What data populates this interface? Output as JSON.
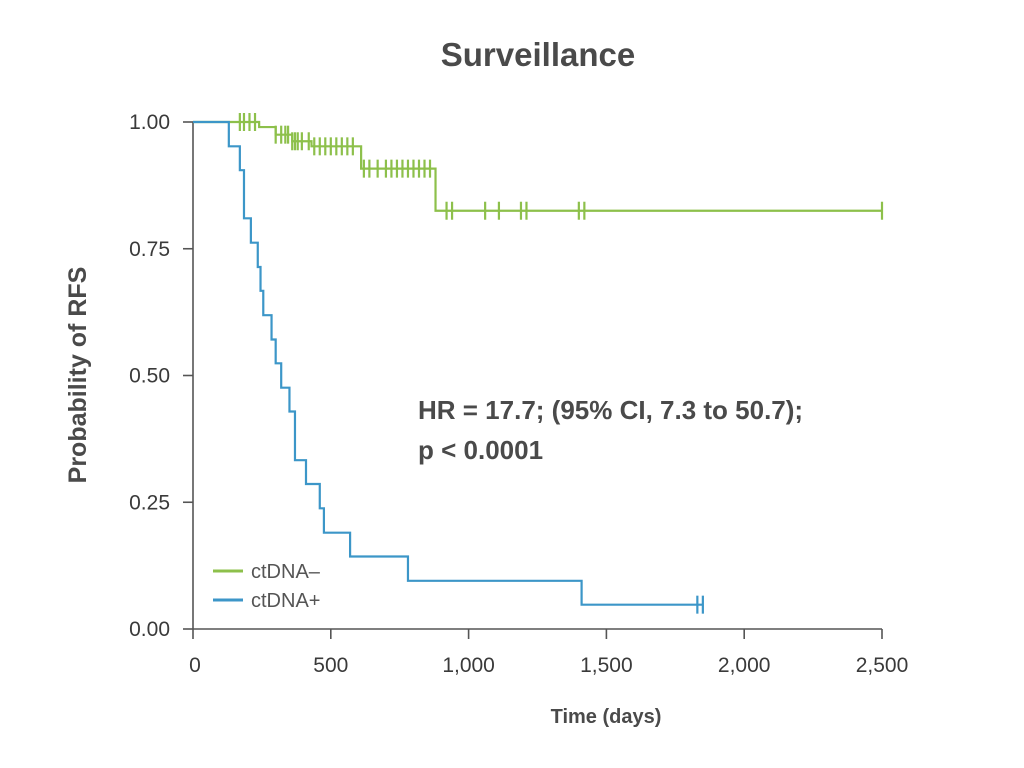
{
  "chart_data": {
    "type": "line",
    "step": true,
    "title": "Surveillance",
    "xlabel": "Time (days)",
    "ylabel": "Probability of RFS",
    "xlim": [
      0,
      2500
    ],
    "ylim": [
      0,
      1
    ],
    "x_ticks": [
      0,
      500,
      1000,
      1500,
      2000,
      2500
    ],
    "x_tick_labels": [
      "0",
      "500",
      "1,000",
      "1,500",
      "2,000",
      "2,500"
    ],
    "y_ticks": [
      0,
      0.25,
      0.5,
      0.75,
      1.0
    ],
    "y_tick_labels": [
      "0.00",
      "0.25",
      "0.50",
      "0.75",
      "1.00"
    ],
    "grid": false,
    "legend_position": "bottom-left",
    "annotation": [
      "HR = 17.7; (95% CI, 7.3 to 50.7);",
      "p < 0.0001"
    ],
    "series": [
      {
        "name": "ctDNA–",
        "color": "#8dc04b",
        "steps": [
          [
            0,
            1.0
          ],
          [
            240,
            0.99
          ],
          [
            300,
            0.975
          ],
          [
            360,
            0.962
          ],
          [
            430,
            0.952
          ],
          [
            610,
            0.908
          ],
          [
            880,
            0.825
          ],
          [
            2500,
            0.825
          ]
        ],
        "censor_x": [
          170,
          185,
          205,
          225,
          300,
          320,
          335,
          345,
          360,
          370,
          380,
          395,
          420,
          440,
          460,
          480,
          500,
          520,
          540,
          560,
          580,
          620,
          640,
          670,
          700,
          720,
          740,
          760,
          780,
          800,
          820,
          840,
          860,
          920,
          940,
          1060,
          1110,
          1190,
          1210,
          1400,
          1420,
          2500
        ]
      },
      {
        "name": "ctDNA+",
        "color": "#3c96c8",
        "steps": [
          [
            0,
            1.0
          ],
          [
            130,
            0.952
          ],
          [
            170,
            0.905
          ],
          [
            185,
            0.81
          ],
          [
            210,
            0.762
          ],
          [
            235,
            0.714
          ],
          [
            245,
            0.667
          ],
          [
            255,
            0.619
          ],
          [
            285,
            0.571
          ],
          [
            300,
            0.524
          ],
          [
            320,
            0.476
          ],
          [
            350,
            0.429
          ],
          [
            370,
            0.333
          ],
          [
            410,
            0.286
          ],
          [
            460,
            0.238
          ],
          [
            475,
            0.19
          ],
          [
            570,
            0.143
          ],
          [
            780,
            0.095
          ],
          [
            1410,
            0.048
          ],
          [
            1850,
            0.048
          ]
        ],
        "censor_x": [
          1830,
          1850
        ]
      }
    ]
  }
}
